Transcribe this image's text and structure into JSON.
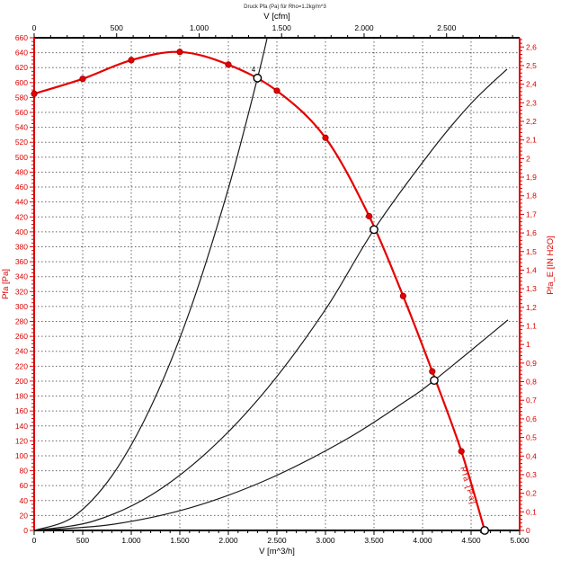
{
  "chart_data": {
    "type": "line",
    "title": "Druck Pfa (Pa) für Rho=1.2kg/m^3",
    "grid": "on",
    "colors": {
      "fan_curve": "#e60000",
      "system_curves": "#1a1a1a",
      "left_axis": "#dd0000",
      "right_axis": "#dd0000",
      "top_axis": "#000000",
      "bottom_axis": "#000000",
      "grid": "#666666",
      "background": "#ffffff"
    },
    "axes": {
      "bottom": {
        "label": "V [m^3/h]",
        "min": 0,
        "max": 5000,
        "major": 500,
        "minor": 100,
        "tick_labels": [
          "0",
          "500",
          "1.000",
          "1.500",
          "2.000",
          "2.500",
          "3.000",
          "3.500",
          "4.000",
          "4.500",
          "5.000"
        ]
      },
      "top": {
        "label": "V [cfm]",
        "min": 0,
        "max": 2943,
        "major": 500,
        "minor": 100,
        "m3h_per_cfm": 1.69901,
        "tick_labels": [
          "0",
          "500",
          "1.000",
          "1.500",
          "2.000",
          "2.500"
        ]
      },
      "left": {
        "label": "Pfa [Pa]",
        "min": 0,
        "max": 660,
        "major": 20,
        "minor": 5,
        "tick_labels": [
          "0",
          "20",
          "40",
          "60",
          "80",
          "100",
          "120",
          "140",
          "160",
          "180",
          "200",
          "220",
          "240",
          "260",
          "280",
          "300",
          "320",
          "340",
          "360",
          "380",
          "400",
          "420",
          "440",
          "460",
          "480",
          "500",
          "520",
          "540",
          "560",
          "580",
          "600",
          "620",
          "640",
          "660"
        ]
      },
      "right": {
        "label": "Pfa_E [IN H2O]",
        "min": 0,
        "max": 2.6,
        "major": 0.1,
        "minor": 0.02,
        "pa_per_unit": 249.089,
        "tick_labels": [
          "0",
          "0,1",
          "0,2",
          "0,3",
          "0,4",
          "0,5",
          "0,6",
          "0,7",
          "0,8",
          "0,9",
          "1",
          "1,1",
          "1,2",
          "1,3",
          "1,4",
          "1,5",
          "1,6",
          "1,7",
          "1,8",
          "1,9",
          "2",
          "2,1",
          "2,2",
          "2,3",
          "2,4",
          "2,5",
          "2,6"
        ]
      }
    },
    "series": [
      {
        "name": "fan_curve_Pfa",
        "type": "line",
        "points": [
          [
            0,
            585
          ],
          [
            500,
            605
          ],
          [
            1000,
            630
          ],
          [
            1500,
            641
          ],
          [
            2000,
            624
          ],
          [
            2500,
            589
          ],
          [
            3000,
            526
          ],
          [
            3450,
            421
          ],
          [
            3800,
            314
          ],
          [
            4100,
            213
          ],
          [
            4400,
            106
          ],
          [
            4640,
            0
          ]
        ]
      },
      {
        "name": "system_curve_steep",
        "type": "line",
        "points": [
          [
            0,
            0
          ],
          [
            400,
            18
          ],
          [
            800,
            73
          ],
          [
            1200,
            165
          ],
          [
            1600,
            293
          ],
          [
            2000,
            458
          ],
          [
            2300,
            606
          ],
          [
            2400,
            660
          ]
        ]
      },
      {
        "name": "system_curve_middle",
        "type": "line",
        "points": [
          [
            0,
            0
          ],
          [
            600,
            12
          ],
          [
            1200,
            47
          ],
          [
            1800,
            107
          ],
          [
            2400,
            190
          ],
          [
            3000,
            296
          ],
          [
            3500,
            403
          ],
          [
            4100,
            510
          ],
          [
            4500,
            572
          ],
          [
            4870,
            618
          ]
        ]
      },
      {
        "name": "system_curve_shallow",
        "type": "line",
        "points": [
          [
            0,
            0
          ],
          [
            800,
            8
          ],
          [
            1600,
            30
          ],
          [
            2400,
            68
          ],
          [
            3200,
            121
          ],
          [
            3800,
            171
          ],
          [
            4120,
            201
          ],
          [
            4880,
            282
          ]
        ]
      }
    ],
    "operating_points": [
      {
        "v": 2300,
        "p": 606,
        "label": "4"
      },
      {
        "v": 3500,
        "p": 403,
        "label": ""
      },
      {
        "v": 4120,
        "p": 201,
        "label": ""
      },
      {
        "v": 4640,
        "p": 0,
        "label": ""
      }
    ],
    "curve_label": "Pfa [Pa]"
  }
}
